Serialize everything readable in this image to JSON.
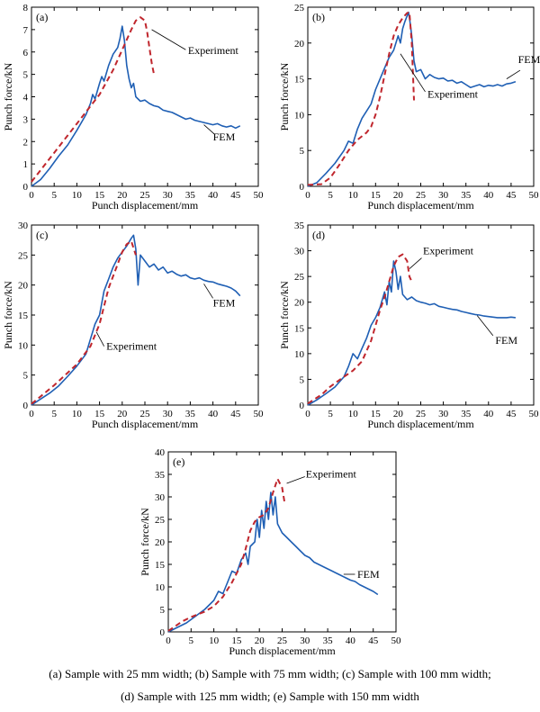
{
  "colors": {
    "fem": "#1f5fb4",
    "experiment": "#c0262d",
    "axis": "#000000"
  },
  "captions": {
    "line1": "(a) Sample with 25 mm width; (b) Sample with 75 mm width; (c) Sample with 100 mm width;",
    "line2": "(d) Sample with 125 mm width; (e) Sample with 150 mm width"
  },
  "chart_data": [
    {
      "type": "line",
      "panel_label": "(a)",
      "xlabel": "Punch displacement/mm",
      "ylabel": "Punch force/kN",
      "xlim": [
        0,
        50
      ],
      "ylim": [
        0,
        8
      ],
      "xticks": [
        0,
        5,
        10,
        15,
        20,
        25,
        30,
        35,
        40,
        45,
        50
      ],
      "yticks": [
        0,
        1,
        2,
        3,
        4,
        5,
        6,
        7,
        8
      ],
      "series": [
        {
          "name": "FEM",
          "style": "solid",
          "x": [
            0,
            2,
            4,
            6,
            8,
            10,
            12,
            13,
            13.5,
            14,
            15,
            15.5,
            16,
            17,
            18,
            19,
            19.5,
            20,
            20.5,
            21,
            21.5,
            22,
            22.5,
            23,
            24,
            25,
            26,
            27,
            28,
            29,
            30,
            31,
            32,
            33,
            34,
            35,
            36,
            37,
            38,
            39,
            40,
            41,
            42,
            43,
            44,
            45,
            46
          ],
          "y": [
            0,
            0.3,
            0.8,
            1.35,
            1.85,
            2.5,
            3.2,
            3.7,
            4.1,
            3.9,
            4.6,
            4.9,
            4.7,
            5.4,
            5.9,
            6.2,
            6.6,
            7.15,
            6.5,
            5.4,
            4.8,
            4.4,
            4.6,
            4.0,
            3.8,
            3.85,
            3.7,
            3.6,
            3.55,
            3.4,
            3.35,
            3.3,
            3.2,
            3.1,
            3.0,
            3.05,
            2.95,
            2.9,
            2.85,
            2.8,
            2.75,
            2.8,
            2.7,
            2.65,
            2.7,
            2.6,
            2.7
          ]
        },
        {
          "name": "Experiment",
          "style": "dashed",
          "x": [
            0,
            5,
            10,
            15,
            18,
            20,
            22,
            23,
            24,
            25,
            25.5,
            26,
            26.5,
            27
          ],
          "y": [
            0.2,
            1.5,
            2.8,
            4.1,
            5.2,
            6.1,
            7.0,
            7.4,
            7.55,
            7.4,
            6.9,
            6.2,
            5.5,
            5.0
          ]
        }
      ],
      "annotations": [
        {
          "text": "Experiment",
          "x": 34.5,
          "y": 5.9,
          "anchor": "start",
          "ax": 26.5,
          "ay": 7.0,
          "bx": 34,
          "by": 6.1
        },
        {
          "text": "FEM",
          "x": 40,
          "y": 2.05,
          "anchor": "start",
          "ax": 38,
          "ay": 2.75,
          "bx": 40.5,
          "by": 2.3
        }
      ]
    },
    {
      "type": "line",
      "panel_label": "(b)",
      "xlabel": "Punch displacement/mm",
      "ylabel": "Punch force/kN",
      "xlim": [
        0,
        50
      ],
      "ylim": [
        0,
        25
      ],
      "xticks": [
        0,
        5,
        10,
        15,
        20,
        25,
        30,
        35,
        40,
        45,
        50
      ],
      "yticks": [
        0,
        5,
        10,
        15,
        20,
        25
      ],
      "series": [
        {
          "name": "FEM",
          "style": "solid",
          "x": [
            0,
            2,
            4,
            6,
            8,
            9,
            10,
            11,
            12,
            13,
            14,
            15,
            16,
            17,
            18,
            19,
            20,
            20.5,
            21,
            21.5,
            22,
            22.3,
            22.6,
            23,
            23.5,
            24,
            25,
            26,
            27,
            28,
            29,
            30,
            31,
            32,
            33,
            34,
            35,
            36,
            37,
            38,
            39,
            40,
            41,
            42,
            43,
            44,
            45,
            46
          ],
          "y": [
            0,
            0.5,
            1.8,
            3.2,
            5.0,
            6.3,
            6.0,
            8.0,
            9.5,
            10.5,
            11.5,
            13.5,
            15.0,
            16.5,
            18.0,
            19.0,
            21.0,
            20.0,
            22.0,
            23.0,
            23.8,
            24.3,
            23.0,
            21.0,
            17.5,
            16.0,
            16.3,
            15.0,
            15.6,
            15.2,
            15.0,
            15.1,
            14.7,
            14.8,
            14.4,
            14.6,
            14.2,
            13.8,
            14.0,
            14.2,
            13.9,
            14.1,
            14.0,
            14.2,
            14.0,
            14.3,
            14.4,
            14.6
          ]
        },
        {
          "name": "Experiment",
          "style": "dashed",
          "x": [
            0,
            3,
            5,
            7,
            9,
            11,
            13,
            14,
            15,
            16,
            17,
            18,
            19,
            20,
            21,
            22,
            22.5,
            23,
            23.5
          ],
          "y": [
            0.2,
            0.3,
            1.2,
            3.0,
            5.0,
            6.5,
            7.5,
            8.3,
            10.0,
            12.5,
            15.5,
            18.5,
            21.0,
            22.5,
            23.5,
            24.2,
            24.3,
            20.0,
            12.0
          ]
        }
      ],
      "annotations": [
        {
          "text": "Experiment",
          "x": 26.5,
          "y": 12.4,
          "anchor": "start",
          "ax": 20.5,
          "ay": 18.5,
          "bx": 26,
          "by": 13.2
        },
        {
          "text": "FEM",
          "x": 49,
          "y": 17.2,
          "anchor": "middle",
          "ax": 44,
          "ay": 15.0,
          "bx": 47,
          "by": 16.2
        }
      ]
    },
    {
      "type": "line",
      "panel_label": "(c)",
      "xlabel": "Punch displacement/mm",
      "ylabel": "Punch force/kN",
      "xlim": [
        0,
        50
      ],
      "ylim": [
        0,
        30
      ],
      "xticks": [
        0,
        5,
        10,
        15,
        20,
        25,
        30,
        35,
        40,
        45,
        50
      ],
      "yticks": [
        0,
        5,
        10,
        15,
        20,
        25,
        30
      ],
      "series": [
        {
          "name": "FEM",
          "style": "solid",
          "x": [
            0,
            2,
            4,
            6,
            8,
            10,
            12,
            13,
            14,
            15,
            16,
            17,
            18,
            19,
            20,
            21,
            22,
            22.5,
            23,
            23.5,
            24,
            25,
            26,
            27,
            28,
            29,
            30,
            31,
            32,
            33,
            34,
            35,
            36,
            37,
            38,
            39,
            40,
            41,
            42,
            43,
            44,
            45,
            46
          ],
          "y": [
            0,
            1.0,
            2.0,
            3.2,
            4.8,
            6.5,
            8.5,
            11.0,
            13.5,
            15.0,
            19.0,
            21.0,
            23.0,
            24.5,
            25.5,
            26.5,
            27.8,
            28.3,
            26.0,
            20.0,
            25.0,
            24.0,
            23.0,
            23.5,
            22.5,
            23.0,
            22.0,
            22.3,
            21.8,
            21.5,
            21.7,
            21.2,
            21.0,
            21.2,
            20.8,
            20.6,
            20.5,
            20.2,
            20.0,
            19.8,
            19.5,
            19.0,
            18.2
          ]
        },
        {
          "name": "Experiment",
          "style": "dashed",
          "x": [
            0,
            5,
            10,
            13,
            15,
            17,
            19,
            20,
            21,
            22,
            23
          ],
          "y": [
            0.2,
            3.3,
            6.8,
            9.8,
            13.5,
            19.5,
            23.5,
            25.5,
            26.8,
            27.3,
            25.0
          ]
        }
      ],
      "annotations": [
        {
          "text": "Experiment",
          "x": 16.5,
          "y": 9.2,
          "anchor": "start",
          "ax": 14.3,
          "ay": 12.2,
          "bx": 16,
          "by": 9.8
        },
        {
          "text": "FEM",
          "x": 40,
          "y": 16.4,
          "anchor": "start",
          "ax": 38,
          "ay": 20.2,
          "bx": 40,
          "by": 17.8
        }
      ]
    },
    {
      "type": "line",
      "panel_label": "(d)",
      "xlabel": "Punch displacement/mm",
      "ylabel": "Punch force/kN",
      "xlim": [
        0,
        50
      ],
      "ylim": [
        0,
        35
      ],
      "xticks": [
        0,
        5,
        10,
        15,
        20,
        25,
        30,
        35,
        40,
        45,
        50
      ],
      "yticks": [
        0,
        5,
        10,
        15,
        20,
        25,
        30,
        35
      ],
      "series": [
        {
          "name": "FEM",
          "style": "solid",
          "x": [
            0,
            2,
            4,
            6,
            8,
            9,
            10,
            11,
            12,
            13,
            14,
            15,
            16,
            17,
            17.5,
            18,
            18.5,
            19,
            19.5,
            20,
            20.5,
            21,
            22,
            23,
            24,
            25,
            26,
            27,
            28,
            29,
            30,
            31,
            32,
            33,
            34,
            35,
            36,
            37,
            38,
            39,
            40,
            41,
            42,
            43,
            44,
            45,
            46
          ],
          "y": [
            0,
            1.0,
            2.2,
            3.5,
            5.5,
            7.5,
            10.0,
            9.0,
            11.0,
            13.0,
            15.5,
            17.0,
            19.0,
            22.0,
            19.5,
            24.0,
            22.0,
            28.0,
            26.0,
            22.5,
            25.0,
            21.5,
            20.5,
            21.0,
            20.3,
            20.0,
            19.8,
            19.5,
            19.7,
            19.2,
            19.0,
            18.8,
            18.6,
            18.5,
            18.2,
            18.0,
            17.8,
            17.6,
            17.5,
            17.3,
            17.2,
            17.1,
            17.0,
            17.0,
            17.0,
            17.1,
            17.0
          ]
        },
        {
          "name": "Experiment",
          "style": "dashed",
          "x": [
            0,
            3,
            5,
            8,
            10,
            12,
            14,
            16,
            17,
            18,
            19,
            20,
            21,
            22,
            22.5,
            23
          ],
          "y": [
            0.3,
            2.0,
            3.6,
            5.5,
            6.7,
            8.5,
            12.5,
            18.5,
            21.0,
            24.0,
            27.0,
            28.8,
            29.3,
            28.0,
            25.0,
            24.0
          ]
        }
      ],
      "annotations": [
        {
          "text": "Experiment",
          "x": 25.5,
          "y": 29.3,
          "anchor": "start",
          "ax": 22.5,
          "ay": 26.5,
          "bx": 25.2,
          "by": 28.6
        },
        {
          "text": "FEM",
          "x": 41.5,
          "y": 11.9,
          "anchor": "start",
          "ax": 37.5,
          "ay": 17.4,
          "bx": 41,
          "by": 13.5
        }
      ]
    },
    {
      "type": "line",
      "panel_label": "(e)",
      "xlabel": "Punch displacement/mm",
      "ylabel": "Punch force/kN",
      "xlim": [
        0,
        50
      ],
      "ylim": [
        0,
        40
      ],
      "xticks": [
        0,
        5,
        10,
        15,
        20,
        25,
        30,
        35,
        40,
        45,
        50
      ],
      "yticks": [
        0,
        5,
        10,
        15,
        20,
        25,
        30,
        35,
        40
      ],
      "series": [
        {
          "name": "FEM",
          "style": "solid",
          "x": [
            0,
            2,
            4,
            6,
            8,
            10,
            11,
            12,
            13,
            14,
            15,
            16,
            17,
            17.5,
            18,
            19,
            19.5,
            20,
            20.5,
            21,
            21.5,
            22,
            22.5,
            23,
            23.5,
            24,
            25,
            26,
            27,
            28,
            29,
            30,
            31,
            32,
            33,
            34,
            35,
            36,
            37,
            38,
            39,
            40,
            41,
            42,
            43,
            44,
            45,
            46
          ],
          "y": [
            0,
            1.0,
            2.0,
            3.5,
            5.0,
            7.0,
            9.0,
            8.5,
            11.0,
            13.5,
            13.0,
            16.0,
            17.5,
            15.0,
            19.0,
            20.0,
            25.0,
            21.0,
            27.0,
            23.0,
            29.0,
            25.0,
            31.0,
            26.0,
            30.0,
            24.0,
            22.0,
            21.0,
            20.0,
            19.0,
            18.0,
            17.0,
            16.5,
            15.5,
            15.0,
            14.5,
            14.0,
            13.5,
            13.0,
            12.5,
            12.0,
            11.5,
            11.2,
            10.5,
            10.0,
            9.5,
            9.0,
            8.3
          ]
        },
        {
          "name": "Experiment",
          "style": "dashed",
          "x": [
            0,
            3,
            5,
            8,
            10,
            12,
            14,
            16,
            17,
            18,
            19,
            20,
            21,
            22,
            23,
            24,
            25,
            25.5
          ],
          "y": [
            0.2,
            2.3,
            3.3,
            4.5,
            5.7,
            7.8,
            11.0,
            15.0,
            18.5,
            22.5,
            24.5,
            25.5,
            26.0,
            27.5,
            31.0,
            34.0,
            32.0,
            29.0
          ]
        }
      ],
      "annotations": [
        {
          "text": "Experiment",
          "x": 30.2,
          "y": 34.3,
          "anchor": "start",
          "ax": 26,
          "ay": 33.0,
          "bx": 30,
          "by": 34.5
        },
        {
          "text": "FEM",
          "x": 41.5,
          "y": 12.0,
          "anchor": "start",
          "ax": 38.5,
          "ay": 12.8,
          "bx": 41,
          "by": 12.8
        }
      ]
    }
  ]
}
